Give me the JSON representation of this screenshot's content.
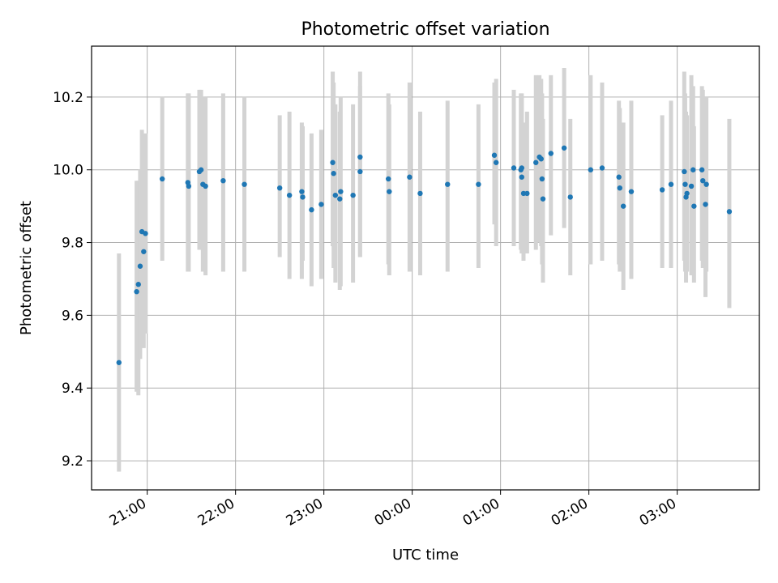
{
  "chart_data": {
    "type": "scatter",
    "title": "Photometric offset variation",
    "xlabel": "UTC time",
    "ylabel": "Photometric offset",
    "x_ticks": [
      "21:00",
      "22:00",
      "23:00",
      "00:00",
      "01:00",
      "02:00",
      "03:00"
    ],
    "x_tick_hours": [
      21,
      22,
      23,
      24,
      25,
      26,
      27
    ],
    "y_ticks": [
      9.2,
      9.4,
      9.6,
      9.8,
      10.0,
      10.2
    ],
    "xlim_hours": [
      20.37,
      27.93
    ],
    "ylim": [
      9.12,
      10.34
    ],
    "grid": true,
    "colors": {
      "points": "#1f77b4",
      "errorbars": "#d3d3d3",
      "grid": "#b0b0b0"
    },
    "series": [
      {
        "x_hours": [
          20.68,
          20.88,
          20.9,
          20.92,
          20.94,
          20.96,
          20.98,
          21.17,
          21.46,
          21.47,
          21.59,
          21.61,
          21.63,
          21.66,
          21.86,
          22.1,
          22.5,
          22.61,
          22.75,
          22.76,
          22.86,
          22.97,
          23.1,
          23.11,
          23.13,
          23.18,
          23.19,
          23.33,
          23.41,
          23.41,
          23.73,
          23.74,
          23.97,
          24.09,
          24.4,
          24.75,
          24.93,
          24.95,
          25.15,
          25.23,
          25.24,
          25.24,
          25.26,
          25.3,
          25.4,
          25.44,
          25.46,
          25.47,
          25.48,
          25.57,
          25.72,
          25.79,
          26.02,
          26.15,
          26.34,
          26.35,
          26.39,
          26.48,
          26.83,
          26.93,
          27.08,
          27.09,
          27.1,
          27.11,
          27.16,
          27.18,
          27.19,
          27.28,
          27.29,
          27.32,
          27.33,
          27.59
        ],
        "y": [
          9.47,
          9.665,
          9.685,
          9.735,
          9.83,
          9.775,
          9.825,
          9.975,
          9.965,
          9.955,
          9.995,
          10.0,
          9.96,
          9.955,
          9.97,
          9.96,
          9.95,
          9.93,
          9.94,
          9.925,
          9.89,
          9.905,
          10.02,
          9.99,
          9.93,
          9.92,
          9.94,
          9.93,
          10.035,
          9.995,
          9.975,
          9.94,
          9.98,
          9.935,
          9.96,
          9.96,
          10.04,
          10.02,
          10.005,
          10.0,
          10.005,
          9.98,
          9.935,
          9.935,
          10.02,
          10.035,
          10.03,
          9.975,
          9.92,
          10.045,
          10.06,
          9.925,
          10.0,
          10.005,
          9.98,
          9.95,
          9.9,
          9.94,
          9.945,
          9.96,
          9.995,
          9.96,
          9.925,
          9.935,
          9.955,
          10.0,
          9.9,
          10.0,
          9.97,
          9.905,
          9.96,
          9.885
        ],
        "y_err_low": [
          9.17,
          9.39,
          9.38,
          9.48,
          9.55,
          9.51,
          9.55,
          9.75,
          9.72,
          9.72,
          9.78,
          9.78,
          9.72,
          9.71,
          9.72,
          9.72,
          9.76,
          9.7,
          9.7,
          9.75,
          9.68,
          9.7,
          9.79,
          9.73,
          9.69,
          9.67,
          9.68,
          9.69,
          9.76,
          9.76,
          9.74,
          9.71,
          9.72,
          9.71,
          9.72,
          9.73,
          9.85,
          9.79,
          9.79,
          9.78,
          9.77,
          9.77,
          9.75,
          9.77,
          9.78,
          9.8,
          9.79,
          9.74,
          9.69,
          9.82,
          9.84,
          9.71,
          9.74,
          9.75,
          9.74,
          9.72,
          9.67,
          9.7,
          9.73,
          9.73,
          9.75,
          9.72,
          9.69,
          9.72,
          9.71,
          9.76,
          9.69,
          9.75,
          9.73,
          9.65,
          9.72,
          9.62
        ],
        "y_err_high": [
          9.77,
          9.97,
          9.97,
          10.0,
          10.11,
          10.05,
          10.1,
          10.2,
          10.21,
          10.21,
          10.22,
          10.22,
          10.2,
          10.2,
          10.21,
          10.2,
          10.15,
          10.16,
          10.13,
          10.12,
          10.1,
          10.11,
          10.27,
          10.24,
          10.18,
          10.16,
          10.2,
          10.18,
          10.27,
          10.23,
          10.21,
          10.18,
          10.24,
          10.16,
          10.19,
          10.18,
          10.24,
          10.25,
          10.22,
          10.21,
          10.21,
          10.2,
          10.13,
          10.16,
          10.26,
          10.26,
          10.25,
          10.21,
          10.14,
          10.26,
          10.28,
          10.14,
          10.26,
          10.24,
          10.19,
          10.17,
          10.13,
          10.19,
          10.15,
          10.19,
          10.27,
          10.21,
          10.16,
          10.15,
          10.26,
          10.23,
          10.12,
          10.23,
          10.22,
          10.16,
          10.2,
          10.14
        ]
      }
    ]
  }
}
